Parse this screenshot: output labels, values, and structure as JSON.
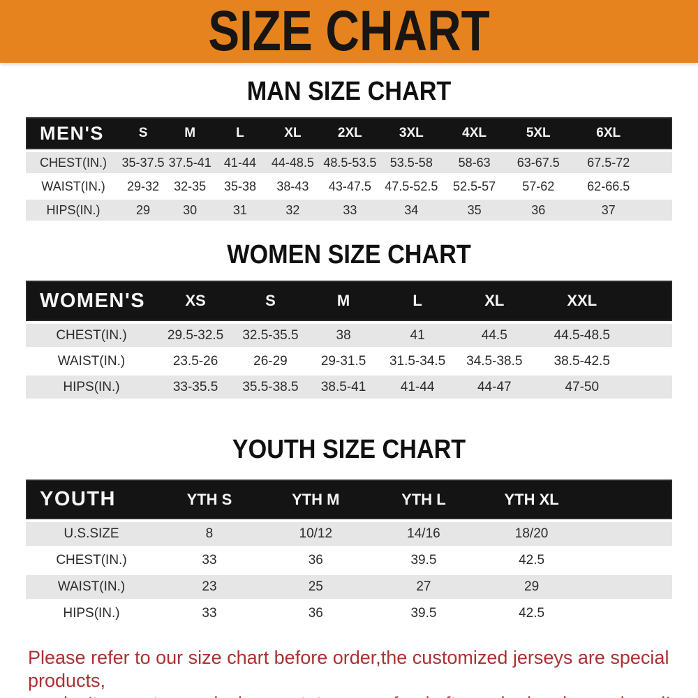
{
  "banner": {
    "title": "SIZE CHART",
    "bg_color": "#E6831F",
    "text_color": "#181512"
  },
  "sections": [
    {
      "heading": "MAN SIZE CHART",
      "table": {
        "header": [
          "MEN'S",
          "S",
          "M",
          "L",
          "XL",
          "2XL",
          "3XL",
          "4XL",
          "5XL",
          "6XL"
        ],
        "rows": [
          [
            "CHEST(IN.)",
            "35-37.5",
            "37.5-41",
            "41-44",
            "44-48.5",
            "48.5-53.5",
            "53.5-58",
            "58-63",
            "63-67.5",
            "67.5-72"
          ],
          [
            "WAIST(IN.)",
            "29-32",
            "32-35",
            "35-38",
            "38-43",
            "43-47.5",
            "47.5-52.5",
            "52.5-57",
            "57-62",
            "62-66.5"
          ],
          [
            "HIPS(IN.)",
            "29",
            "30",
            "31",
            "32",
            "33",
            "34",
            "35",
            "36",
            "37"
          ]
        ]
      }
    },
    {
      "heading": "WOMEN SIZE CHART",
      "table": {
        "header": [
          "WOMEN'S",
          "XS",
          "S",
          "M",
          "L",
          "XL",
          "XXL"
        ],
        "rows": [
          [
            "CHEST(IN.)",
            "29.5-32.5",
            "32.5-35.5",
            "38",
            "41",
            "44.5",
            "44.5-48.5"
          ],
          [
            "WAIST(IN.)",
            "23.5-26",
            "26-29",
            "29-31.5",
            "31.5-34.5",
            "34.5-38.5",
            "38.5-42.5"
          ],
          [
            "HIPS(IN.)",
            "33-35.5",
            "35.5-38.5",
            "38.5-41",
            "41-44",
            "44-47",
            "47-50"
          ]
        ]
      }
    },
    {
      "heading": "YOUTH SIZE CHART",
      "table": {
        "header": [
          "YOUTH",
          "YTH S",
          "YTH M",
          "YTH L",
          "YTH XL"
        ],
        "rows": [
          [
            "U.S.SIZE",
            "8",
            "10/12",
            "14/16",
            "18/20"
          ],
          [
            "CHEST(IN.)",
            "33",
            "36",
            "39.5",
            "42.5"
          ],
          [
            "WAIST(IN.)",
            "23",
            "25",
            "27",
            "29"
          ],
          [
            "HIPS(IN.)",
            "33",
            "36",
            "39.5",
            "42.5"
          ]
        ]
      }
    }
  ],
  "footer": {
    "lines": [
      "Please refer to our size chart before order,the customized jerseys are special products,",
      "we don't accept cancel, change, teturn or refund after order has been placed!"
    ],
    "text_color": "#A93232"
  },
  "colors": {
    "banner_bg": "#E6831F",
    "table_header_bg": "#141414",
    "table_header_text": "#F5F5F5",
    "row_alt_bg": "#E6E6E6",
    "body_text": "#2B2B2B",
    "footer_text": "#A93232"
  }
}
